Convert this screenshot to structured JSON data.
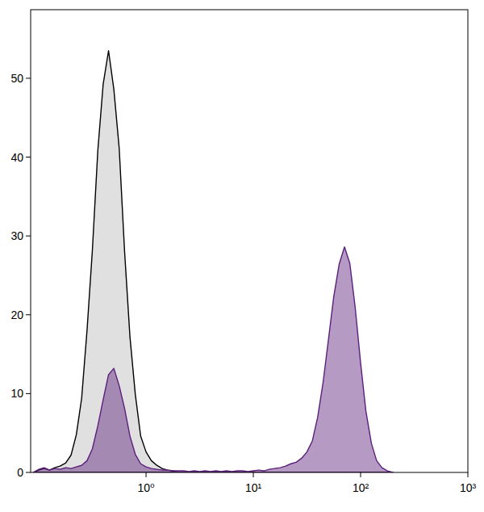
{
  "chart_data": {
    "type": "area",
    "log": "x",
    "x": [
      0.0891,
      0.1,
      0.112,
      0.126,
      0.141,
      0.158,
      0.178,
      0.2,
      0.224,
      0.251,
      0.282,
      0.316,
      0.355,
      0.398,
      0.447,
      0.501,
      0.562,
      0.631,
      0.708,
      0.794,
      0.891,
      1,
      1.12,
      1.26,
      1.41,
      1.58,
      1.78,
      2,
      2.24,
      2.51,
      2.82,
      3.16,
      3.55,
      3.98,
      4.47,
      5.01,
      5.62,
      6.31,
      7.08,
      7.94,
      8.91,
      10,
      11.2,
      12.6,
      14.1,
      15.8,
      17.8,
      20,
      22.4,
      25.1,
      28.2,
      31.6,
      35.5,
      39.8,
      44.7,
      50.1,
      56.2,
      63.1,
      70.8,
      79.4,
      89.1,
      100,
      112,
      126,
      141,
      158,
      178,
      200
    ],
    "series": [
      {
        "color": "#000000",
        "values": [
          0,
          0.3,
          0.5,
          0.3,
          0.6,
          0.8,
          1.2,
          2.2,
          4.8,
          9.4,
          18.1,
          28.2,
          40.8,
          49.2,
          53.5,
          48.6,
          41.1,
          28.0,
          17.2,
          9.9,
          4.6,
          2.6,
          1.5,
          0.9,
          0.5,
          0.3,
          0.2,
          0,
          0,
          0,
          0,
          0,
          0,
          0,
          0,
          0,
          0,
          0,
          0,
          0,
          0,
          0,
          0,
          0,
          0,
          0,
          0,
          0,
          0,
          0,
          0,
          0,
          0,
          0,
          0,
          0,
          0,
          0,
          0,
          0,
          0,
          0,
          0,
          0,
          0,
          0,
          0,
          0
        ]
      },
      {
        "color": "#5c1f7c",
        "values": [
          0,
          0.4,
          0.6,
          0.3,
          0.5,
          0.4,
          0.6,
          0.5,
          0.7,
          0.9,
          1.5,
          3.0,
          5.9,
          9.2,
          12.4,
          13.2,
          11.0,
          8.1,
          4.6,
          2.3,
          1.1,
          0.7,
          0.5,
          0.4,
          0.3,
          0.3,
          0.2,
          0.2,
          0.2,
          0.1,
          0.2,
          0.1,
          0.2,
          0.1,
          0.2,
          0.1,
          0.2,
          0.1,
          0.2,
          0.2,
          0.1,
          0.2,
          0.3,
          0.2,
          0.4,
          0.5,
          0.6,
          0.8,
          1.1,
          1.3,
          1.8,
          2.6,
          4.0,
          7.0,
          11.4,
          16.8,
          22.3,
          26.4,
          28.6,
          26.5,
          20.9,
          13.9,
          7.8,
          3.7,
          1.5,
          0.6,
          0.2,
          0
        ]
      }
    ],
    "xlim": [
      0.084,
      1000
    ],
    "xticks": [
      {
        "value": 1,
        "label": "10⁰"
      },
      {
        "value": 10,
        "label": "10¹"
      },
      {
        "value": 100,
        "label": "10²"
      },
      {
        "value": 1000,
        "label": "10³"
      }
    ],
    "ylim": [
      0,
      58.7
    ],
    "yticks": [
      0,
      10,
      20,
      30,
      40,
      50
    ]
  }
}
